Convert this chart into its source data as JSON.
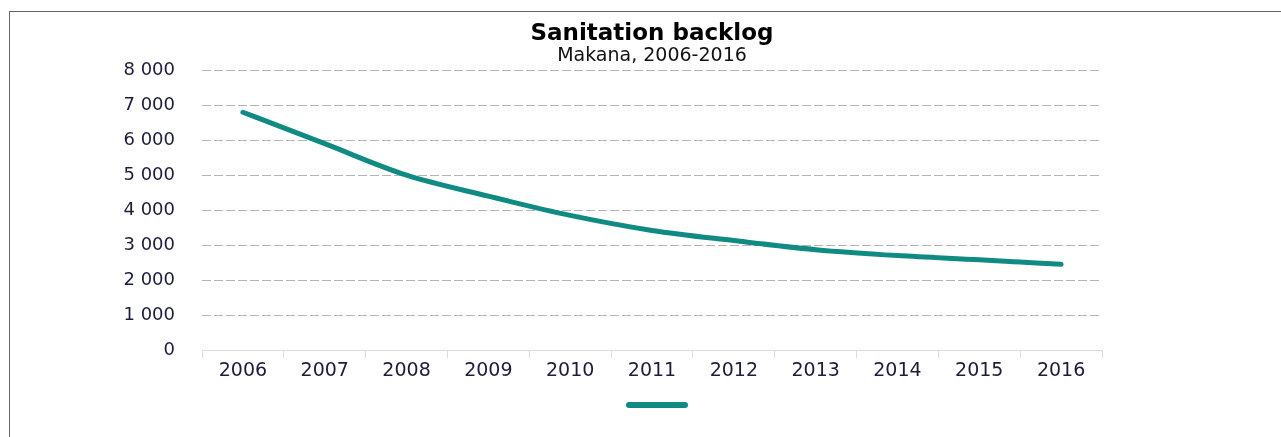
{
  "chart_data": {
    "type": "line",
    "title": "Sanitation backlog",
    "subtitle": "Makana, 2006-2016",
    "categories": [
      "2006",
      "2007",
      "2008",
      "2009",
      "2010",
      "2011",
      "2012",
      "2013",
      "2014",
      "2015",
      "2016"
    ],
    "series": [
      {
        "color": "#0f8b83",
        "values": [
          6800,
          5900,
          5000,
          4400,
          3850,
          3420,
          3130,
          2870,
          2700,
          2580,
          2450
        ]
      }
    ],
    "ylim": [
      0,
      8000
    ],
    "yticks": [
      0,
      {
        "value": 1000,
        "label": "1 000"
      },
      {
        "value": 2000,
        "label": "2 000"
      },
      {
        "value": 3000,
        "label": "3 000"
      },
      {
        "value": 4000,
        "label": "4 000"
      },
      {
        "value": 5000,
        "label": "5 000"
      },
      {
        "value": 6000,
        "label": "6 000"
      },
      {
        "value": 7000,
        "label": "7 000"
      },
      {
        "value": 8000,
        "label": "8 000"
      }
    ],
    "grid": "y"
  }
}
